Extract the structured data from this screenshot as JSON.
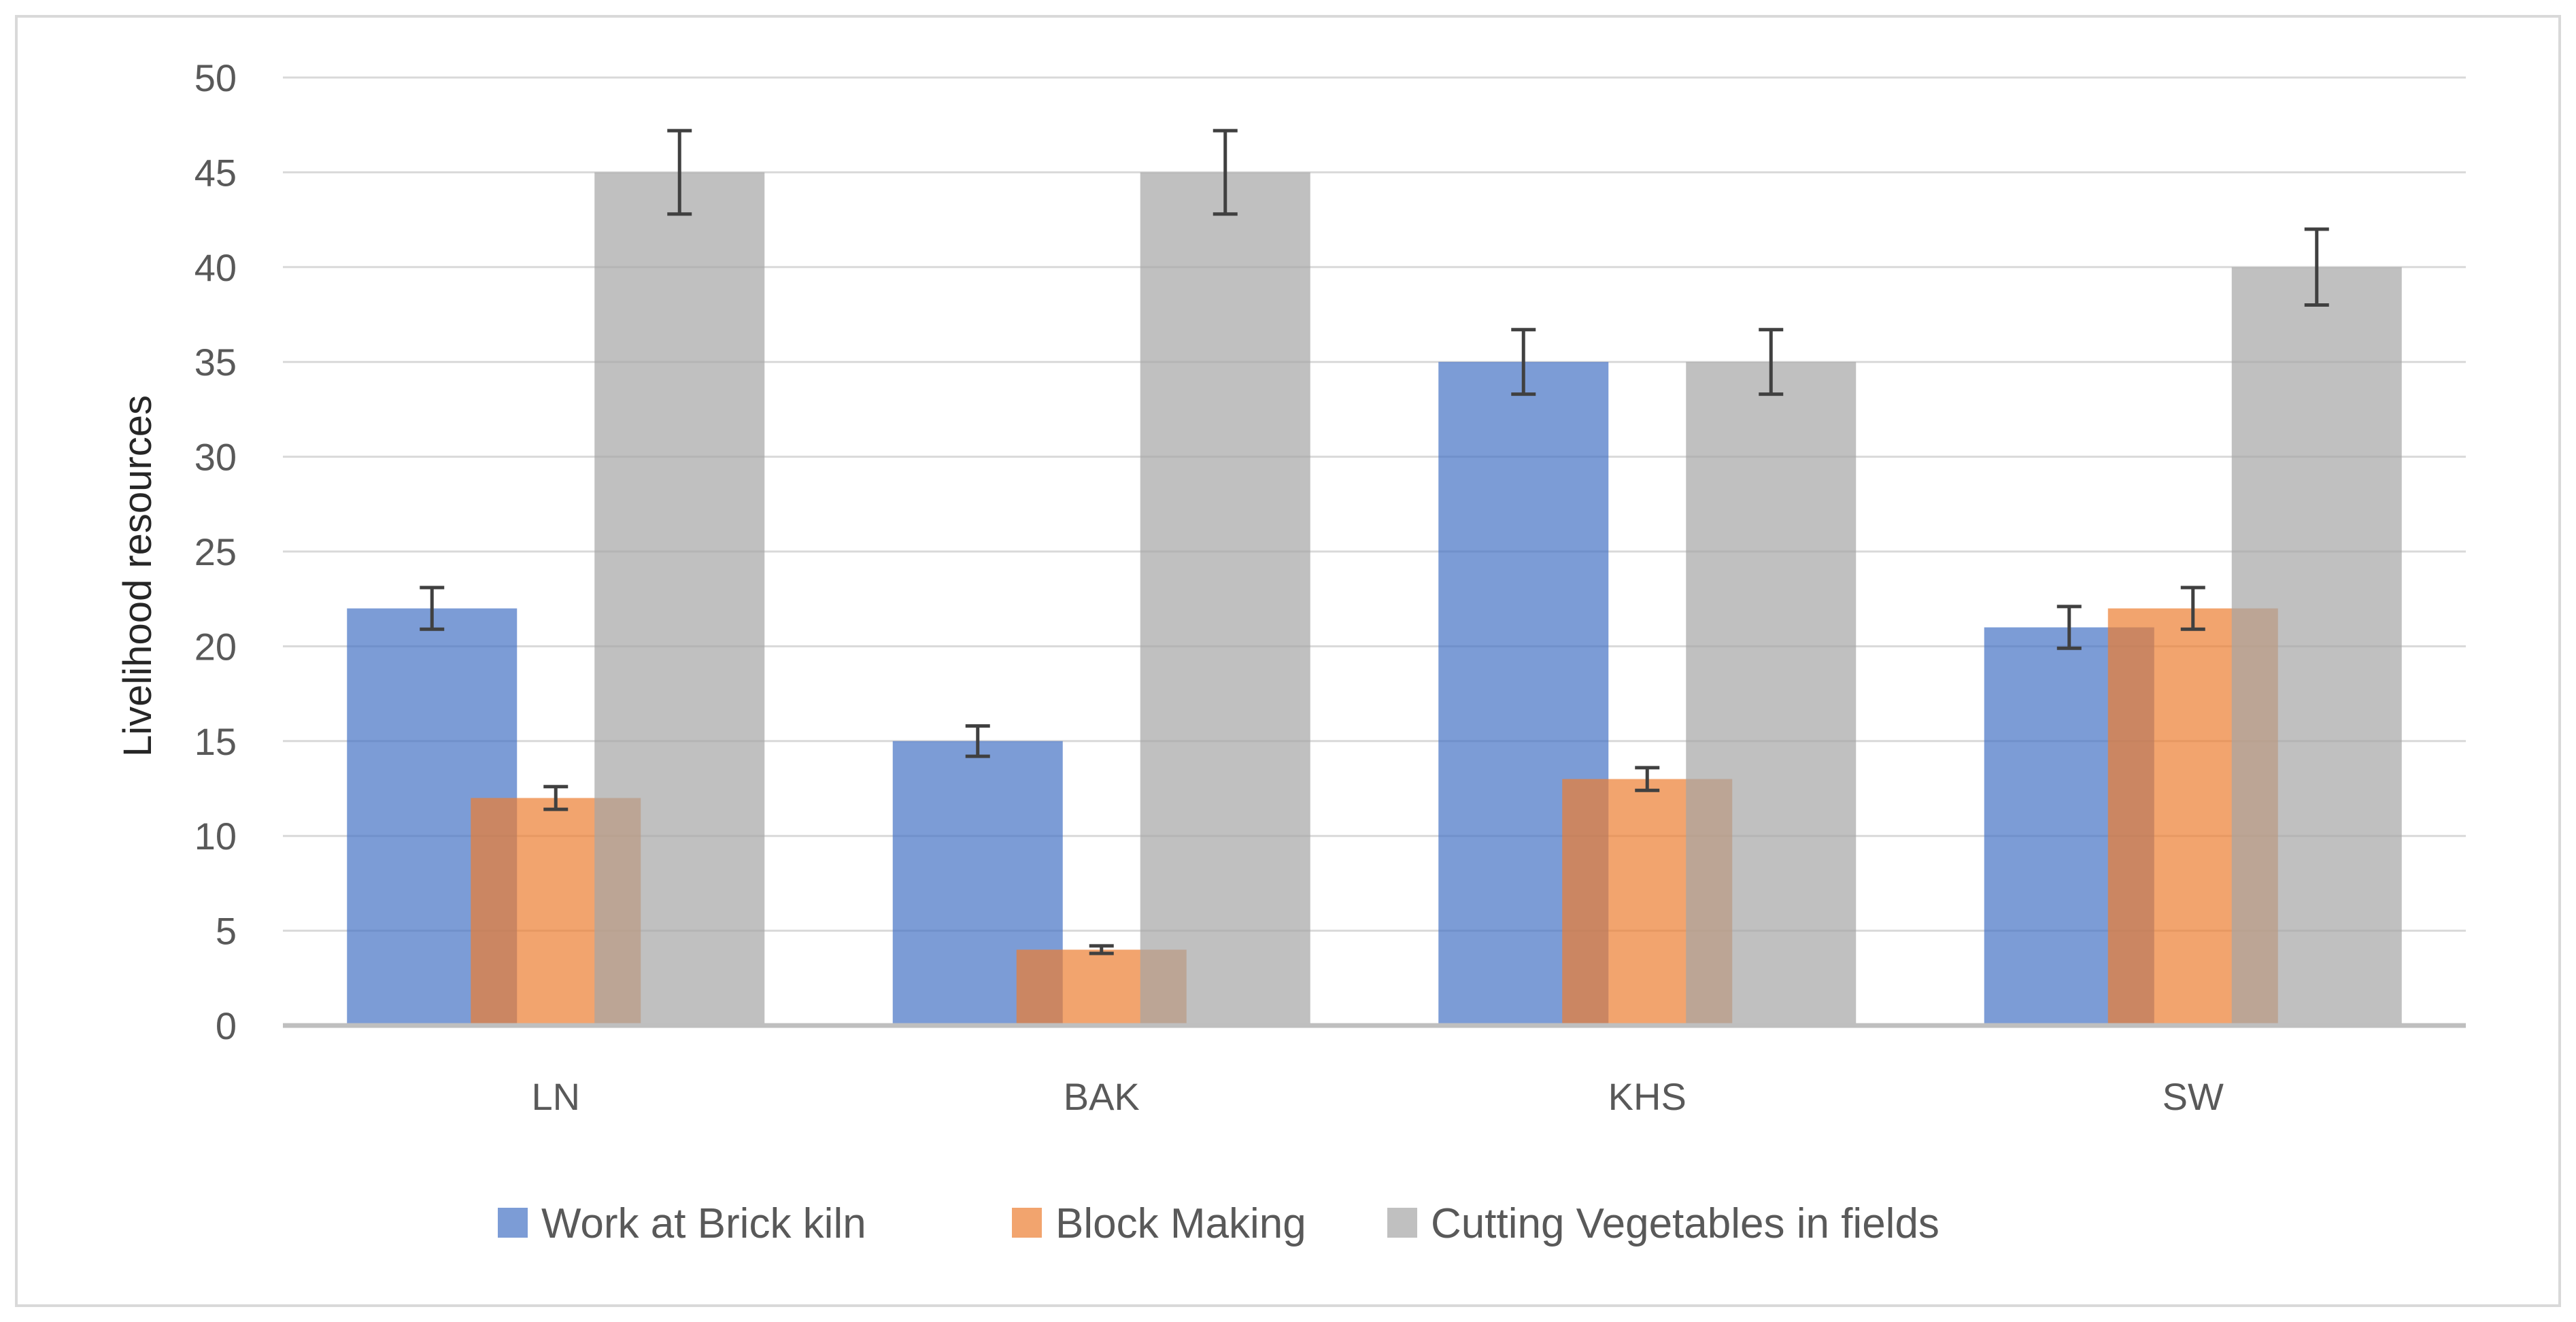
{
  "chart_data": {
    "type": "bar",
    "title": "",
    "xlabel": "",
    "ylabel": "Livelihood resources",
    "ylim": [
      0,
      50
    ],
    "yticks": [
      0,
      5,
      10,
      15,
      20,
      25,
      30,
      35,
      40,
      45,
      50
    ],
    "grid": true,
    "legend_position": "bottom",
    "categories": [
      "LN",
      "BAK",
      "KHS",
      "SW"
    ],
    "series": [
      {
        "name": "Work at Brick kiln",
        "color": "#4472c4",
        "values": [
          22,
          15,
          35,
          21
        ],
        "errors": [
          1.1,
          0.8,
          1.7,
          1.1
        ]
      },
      {
        "name": "Block Making",
        "color": "#ed7d31",
        "values": [
          12,
          4,
          13,
          22
        ],
        "errors": [
          0.6,
          0.2,
          0.6,
          1.1
        ]
      },
      {
        "name": "Cutting Vegetables in fields",
        "color": "#a5a5a5",
        "values": [
          45,
          45,
          35,
          40
        ],
        "errors": [
          2.2,
          2.2,
          1.7,
          2.0
        ]
      }
    ]
  }
}
